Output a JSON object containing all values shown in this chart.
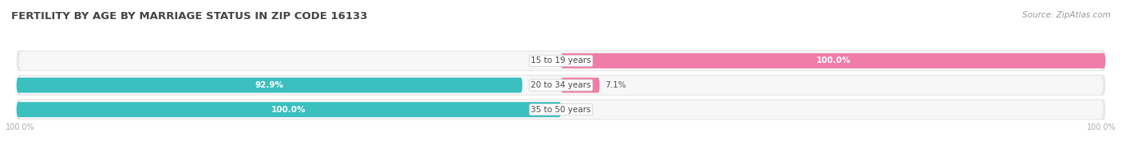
{
  "title": "FERTILITY BY AGE BY MARRIAGE STATUS IN ZIP CODE 16133",
  "source": "Source: ZipAtlas.com",
  "categories": [
    "15 to 19 years",
    "20 to 34 years",
    "35 to 50 years"
  ],
  "married_pct": [
    0.0,
    92.9,
    100.0
  ],
  "unmarried_pct": [
    100.0,
    7.1,
    0.0
  ],
  "married_color": "#3bbfbf",
  "unmarried_color": "#f07ca8",
  "row_bg_color": "#e8e8e8",
  "bar_bg_left_color": "#f5f5f5",
  "bar_bg_right_color": "#f5f5f5",
  "title_fontsize": 9.5,
  "label_fontsize": 7.5,
  "category_fontsize": 7.5,
  "legend_fontsize": 8,
  "source_fontsize": 7.5,
  "bg_color": "#ffffff",
  "title_color": "#444444",
  "text_color_inside": "#ffffff",
  "text_color_outside": "#555555",
  "bottom_label_color": "#aaaaaa"
}
